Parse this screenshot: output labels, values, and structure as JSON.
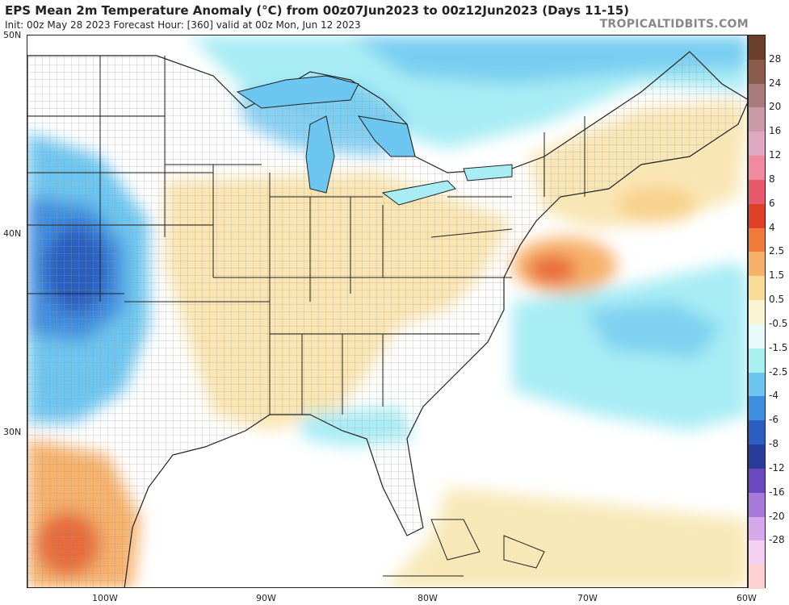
{
  "header": {
    "title": "EPS Mean 2m Temperature Anomaly (°C) from 00z07Jun2023 to 00z12Jun2023 (Days 11-15)",
    "subtitle": "Init: 00z May 28 2023   Forecast Hour: [360]   valid at 00z Mon, Jun 12 2023",
    "brand": "TROPICALTIDBITS.COM"
  },
  "axes": {
    "lat_labels": [
      "50N",
      "40N",
      "30N"
    ],
    "lon_labels": [
      "100W",
      "90W",
      "80W",
      "70W",
      "60W"
    ]
  },
  "colorbar": {
    "labels": [
      "28",
      "24",
      "20",
      "16",
      "12",
      "8",
      "6",
      "4",
      "2.5",
      "1.5",
      "0.5",
      "-0.5",
      "-1.5",
      "-2.5",
      "-4",
      "-6",
      "-8",
      "-12",
      "-16",
      "-20",
      "-28"
    ],
    "colors": [
      "#6b3e2a",
      "#8a5a4a",
      "#a87a7a",
      "#c99aa8",
      "#e0a8c0",
      "#f08aa0",
      "#e85a6a",
      "#e0402a",
      "#f07a3a",
      "#f6b16a",
      "#f8dc98",
      "#fbf4d2",
      "#e8fbfa",
      "#a8f0f0",
      "#6cc6f0",
      "#3f8ee0",
      "#2a5ec0",
      "#2a3c9a",
      "#6a48c0",
      "#a878d8",
      "#d8a8ec",
      "#f4d0f4",
      "#ffd0d0"
    ]
  },
  "legend_icons": {
    "map": "temperature-anomaly-map"
  }
}
